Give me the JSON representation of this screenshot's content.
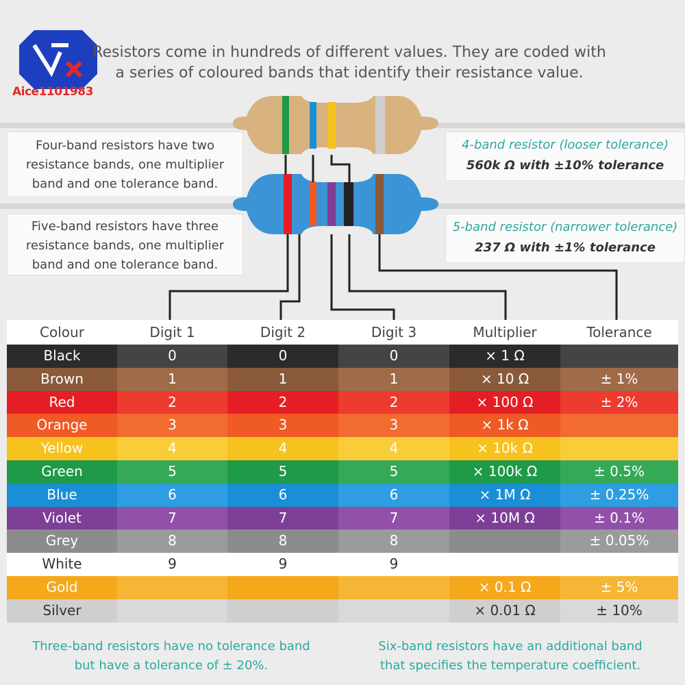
{
  "header": {
    "logo_label": "Aice1101983",
    "intro_line1": "Resistors come in hundreds of different values. They are coded with",
    "intro_line2": "a series of coloured bands that identify their resistance value."
  },
  "four_band": {
    "description": [
      "Four-band resistors have two",
      "resistance bands, one multiplier",
      "band and one tolerance band."
    ],
    "title": "4-band resistor (looser tolerance)",
    "value": "560k Ω with ±10% tolerance"
  },
  "five_band": {
    "description": [
      "Five-band resistors have three",
      "resistance bands, one multiplier",
      "band and one tolerance band."
    ],
    "title": "5-band resistor (narrower tolerance)",
    "value": "237 Ω with ±1% tolerance"
  },
  "table": {
    "headers": [
      "Colour",
      "Digit 1",
      "Digit 2",
      "Digit 3",
      "Multiplier",
      "Tolerance"
    ],
    "rows": [
      {
        "colour": "Black",
        "d1": "0",
        "d2": "0",
        "d3": "0",
        "mult": "× 1 Ω",
        "tol": "",
        "bg": "#2b2b2b",
        "bg_alt": "#444444",
        "text": "#ffffff"
      },
      {
        "colour": "Brown",
        "d1": "1",
        "d2": "1",
        "d3": "1",
        "mult": "× 10 Ω",
        "tol": "± 1%",
        "bg": "#8a5a3b",
        "bg_alt": "#a06b48",
        "text": "#ffffff"
      },
      {
        "colour": "Red",
        "d1": "2",
        "d2": "2",
        "d3": "2",
        "mult": "× 100 Ω",
        "tol": "± 2%",
        "bg": "#e51e25",
        "bg_alt": "#ee3b2f",
        "text": "#ffffff"
      },
      {
        "colour": "Orange",
        "d1": "3",
        "d2": "3",
        "d3": "3",
        "mult": "× 1k Ω",
        "tol": "",
        "bg": "#f05a24",
        "bg_alt": "#f26b30",
        "text": "#ffffff"
      },
      {
        "colour": "Yellow",
        "d1": "4",
        "d2": "4",
        "d3": "4",
        "mult": "× 10k Ω",
        "tol": "",
        "bg": "#f7c11e",
        "bg_alt": "#f9cc3a",
        "text": "#ffffff"
      },
      {
        "colour": "Green",
        "d1": "5",
        "d2": "5",
        "d3": "5",
        "mult": "× 100k Ω",
        "tol": "± 0.5%",
        "bg": "#1f9a48",
        "bg_alt": "#36a957",
        "text": "#ffffff"
      },
      {
        "colour": "Blue",
        "d1": "6",
        "d2": "6",
        "d3": "6",
        "mult": "× 1M Ω",
        "tol": "± 0.25%",
        "bg": "#1a8fd6",
        "bg_alt": "#2e9ee0",
        "text": "#ffffff"
      },
      {
        "colour": "Violet",
        "d1": "7",
        "d2": "7",
        "d3": "7",
        "mult": "× 10M Ω",
        "tol": "± 0.1%",
        "bg": "#7e3f97",
        "bg_alt": "#9151a8",
        "text": "#ffffff"
      },
      {
        "colour": "Grey",
        "d1": "8",
        "d2": "8",
        "d3": "8",
        "mult": "",
        "tol": "± 0.05%",
        "bg": "#8c8c8c",
        "bg_alt": "#9b9b9b",
        "text": "#ffffff"
      },
      {
        "colour": "White",
        "d1": "9",
        "d2": "9",
        "d3": "9",
        "mult": "",
        "tol": "",
        "bg": "#ffffff",
        "bg_alt": "#ffffff",
        "text": "#333333"
      },
      {
        "colour": "Gold",
        "d1": "",
        "d2": "",
        "d3": "",
        "mult": "× 0.1 Ω",
        "tol": "± 5%",
        "bg": "#f5a81c",
        "bg_alt": "#f7b535",
        "text": "#ffffff"
      },
      {
        "colour": "Silver",
        "d1": "",
        "d2": "",
        "d3": "",
        "mult": "× 0.01 Ω",
        "tol": "± 10%",
        "bg": "#cfcfcf",
        "bg_alt": "#d9d9d9",
        "text": "#333333"
      }
    ]
  },
  "footer": {
    "left": [
      "Three-band resistors have no tolerance band",
      "but have a tolerance of ± 20%."
    ],
    "right": [
      "Six-band resistors have an additional band",
      "that specifies the temperature coefficient."
    ]
  },
  "colors": {
    "accent": "#2ea7a0",
    "logo_blue": "#1d3fbf",
    "logo_red": "#e02a2a"
  }
}
